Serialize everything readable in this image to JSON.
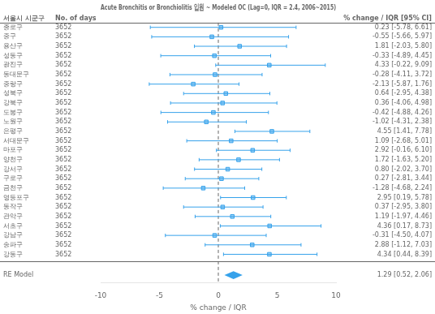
{
  "chart_data": {
    "type": "forest",
    "title": "Acute Bronchitis or Bronchiolitis 입원 ~ Modeled OC (Lag=0, IQR = 2.4, 2006~2015)",
    "column_headers": [
      "서울시 시군구",
      "No. of days",
      "% change / IQR [95% CI]"
    ],
    "x_label": "% change / IQR",
    "categories": [
      "종로구",
      "중구",
      "용산구",
      "성동구",
      "광진구",
      "동대문구",
      "중랑구",
      "성북구",
      "강북구",
      "도봉구",
      "노원구",
      "은평구",
      "서대문구",
      "마포구",
      "양천구",
      "강서구",
      "구로구",
      "금천구",
      "영등포구",
      "동작구",
      "관악구",
      "서초구",
      "강남구",
      "송파구",
      "강동구"
    ],
    "no_of_days": [
      3652,
      3652,
      3652,
      3652,
      3652,
      3652,
      3652,
      3652,
      3652,
      3652,
      3652,
      3652,
      3652,
      3652,
      3652,
      3652,
      3652,
      3652,
      3652,
      3652,
      3652,
      3652,
      3652,
      3652,
      3652
    ],
    "values": [
      0.23,
      -0.55,
      1.81,
      -0.33,
      4.33,
      -0.28,
      -2.13,
      0.64,
      0.36,
      -0.42,
      -1.02,
      4.55,
      1.09,
      2.92,
      1.72,
      0.8,
      0.27,
      -1.28,
      2.95,
      0.37,
      1.19,
      4.36,
      -0.31,
      2.88,
      4.34
    ],
    "ci_lower": [
      -5.78,
      -5.66,
      -2.03,
      -4.89,
      -0.22,
      -4.11,
      -5.87,
      -2.95,
      -4.06,
      -4.88,
      -4.31,
      1.41,
      -2.68,
      -0.16,
      -1.63,
      -2.02,
      -2.81,
      -4.68,
      0.19,
      -2.95,
      -1.97,
      0.17,
      -4.5,
      -1.12,
      0.44
    ],
    "ci_upper": [
      6.61,
      5.97,
      5.8,
      4.45,
      9.09,
      3.72,
      1.76,
      4.38,
      4.98,
      4.26,
      2.38,
      7.78,
      5.01,
      6.1,
      5.2,
      3.7,
      3.44,
      2.24,
      5.78,
      3.8,
      4.46,
      8.73,
      4.07,
      7.03,
      8.39
    ],
    "ci_text": [
      "0.23 [-5.78, 6.61]",
      "-0.55 [-5.66, 5.97]",
      "1.81 [-2.03, 5.80]",
      "-0.33 [-4.89, 4.45]",
      "4.33 [-0.22, 9.09]",
      "-0.28 [-4.11, 3.72]",
      "-2.13 [-5.87, 1.76]",
      "0.64 [-2.95, 4.38]",
      "0.36 [-4.06, 4.98]",
      "-0.42 [-4.88, 4.26]",
      "-1.02 [-4.31, 2.38]",
      "4.55 [1.41, 7.78]",
      "1.09 [-2.68, 5.01]",
      "2.92 [-0.16, 6.10]",
      "1.72 [-1.63, 5.20]",
      "0.80 [-2.02, 3.70]",
      "0.27 [-2.81, 3.44]",
      "-1.28 [-4.68, 2.24]",
      "2.95 [0.19, 5.78]",
      "0.37 [-2.95, 3.80]",
      "1.19 [-1.97, 4.46]",
      "4.36 [0.17, 8.73]",
      "-0.31 [-4.50, 4.07]",
      "2.88 [-1.12, 7.03]",
      "4.34 [0.44, 8.39]"
    ],
    "summary": {
      "name": "RE Model",
      "value": 1.29,
      "ci_lower": 0.52,
      "ci_upper": 2.06,
      "label": "1.29 [0.52, 2.06]"
    },
    "reference_line": 0,
    "xlim": [
      -10,
      10
    ],
    "xticks": [
      -10,
      -5,
      0,
      5,
      10
    ],
    "grid": false
  }
}
